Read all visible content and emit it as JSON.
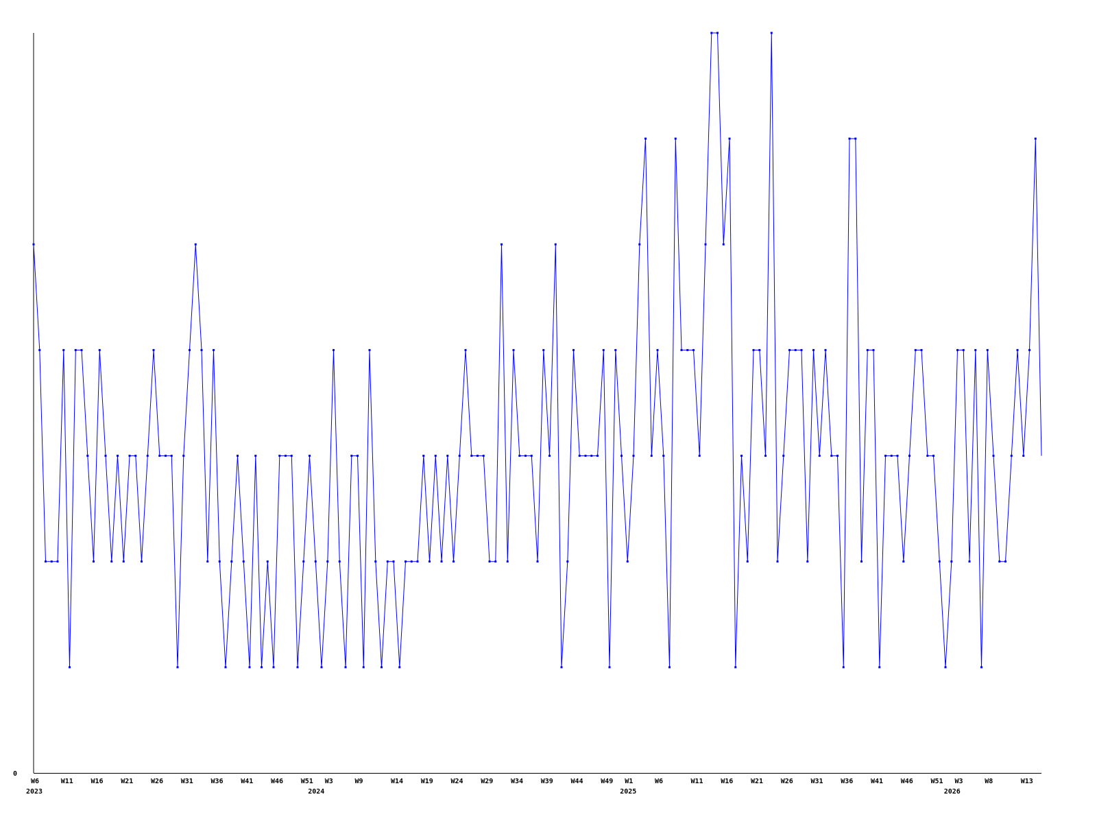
{
  "chart_data": {
    "type": "line",
    "title": "",
    "xlabel": "",
    "ylabel": "",
    "ylim": [
      0,
      7
    ],
    "y_ticks": [
      "0"
    ],
    "grid": false,
    "line_color": "#0000ff",
    "axis_color": "#000000",
    "values": [
      5,
      4,
      2,
      2,
      2,
      4,
      1,
      4,
      4,
      3,
      2,
      4,
      3,
      2,
      3,
      2,
      3,
      3,
      2,
      3,
      4,
      3,
      3,
      3,
      1,
      3,
      4,
      5,
      4,
      2,
      4,
      2,
      1,
      2,
      3,
      2,
      1,
      3,
      1,
      2,
      1,
      3,
      3,
      3,
      1,
      2,
      3,
      2,
      1,
      2,
      4,
      2,
      1,
      3,
      3,
      1,
      4,
      2,
      1,
      2,
      2,
      1,
      2,
      2,
      2,
      3,
      2,
      3,
      2,
      3,
      2,
      3,
      4,
      3,
      3,
      3,
      2,
      2,
      5,
      2,
      4,
      3,
      3,
      3,
      2,
      4,
      3,
      5,
      1,
      2,
      4,
      3,
      3,
      3,
      3,
      4,
      1,
      4,
      3,
      2,
      3,
      5,
      6,
      3,
      4,
      3,
      1,
      6,
      4,
      4,
      4,
      3,
      5,
      7,
      7,
      5,
      6,
      1,
      3,
      2,
      4,
      4,
      3,
      7,
      2,
      3,
      4,
      4,
      4,
      2,
      4,
      3,
      4,
      3,
      3,
      1,
      6,
      6,
      2,
      4,
      4,
      1,
      3,
      3,
      3,
      2,
      3,
      4,
      4,
      3,
      3,
      2,
      1,
      2,
      4,
      4,
      2,
      4,
      1,
      4,
      3,
      2,
      2,
      3,
      4,
      3,
      4,
      6,
      3
    ],
    "x_ticks": [
      {
        "label": "W6",
        "index": 0
      },
      {
        "label": "W11",
        "index": 5
      },
      {
        "label": "W16",
        "index": 10
      },
      {
        "label": "W21",
        "index": 15
      },
      {
        "label": "W26",
        "index": 20
      },
      {
        "label": "W31",
        "index": 25
      },
      {
        "label": "W36",
        "index": 30
      },
      {
        "label": "W41",
        "index": 35
      },
      {
        "label": "W46",
        "index": 40
      },
      {
        "label": "W51",
        "index": 45
      },
      {
        "label": "W3",
        "index": 49
      },
      {
        "label": "W9",
        "index": 54
      },
      {
        "label": "W14",
        "index": 60
      },
      {
        "label": "W19",
        "index": 65
      },
      {
        "label": "W24",
        "index": 70
      },
      {
        "label": "W29",
        "index": 75
      },
      {
        "label": "W34",
        "index": 80
      },
      {
        "label": "W39",
        "index": 85
      },
      {
        "label": "W44",
        "index": 90
      },
      {
        "label": "W49",
        "index": 95
      },
      {
        "label": "W1",
        "index": 99
      },
      {
        "label": "W6",
        "index": 104
      },
      {
        "label": "W11",
        "index": 110
      },
      {
        "label": "W16",
        "index": 115
      },
      {
        "label": "W21",
        "index": 120
      },
      {
        "label": "W26",
        "index": 125
      },
      {
        "label": "W31",
        "index": 130
      },
      {
        "label": "W36",
        "index": 135
      },
      {
        "label": "W41",
        "index": 140
      },
      {
        "label": "W46",
        "index": 145
      },
      {
        "label": "W51",
        "index": 150
      },
      {
        "label": "W3",
        "index": 154
      },
      {
        "label": "W8",
        "index": 159
      },
      {
        "label": "W13",
        "index": 165
      }
    ],
    "year_labels": [
      {
        "label": "2023",
        "index": 0
      },
      {
        "label": "2024",
        "index": 47
      },
      {
        "label": "2025",
        "index": 99
      },
      {
        "label": "2026",
        "index": 153
      }
    ]
  }
}
